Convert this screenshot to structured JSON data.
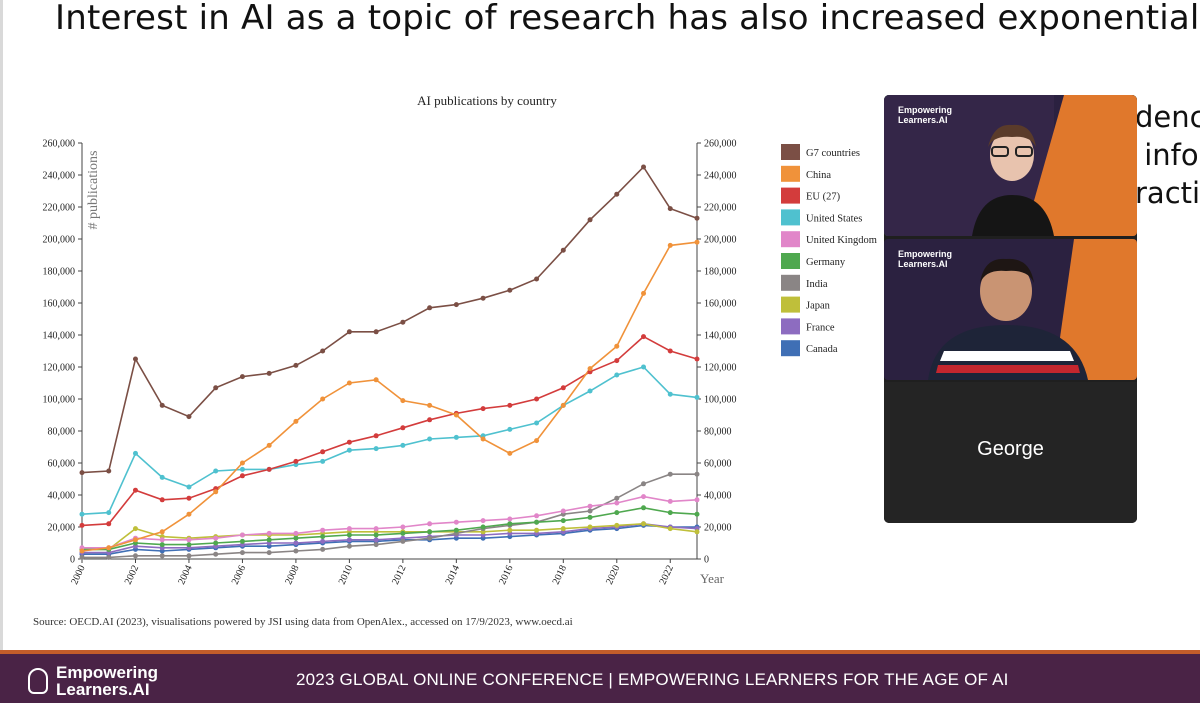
{
  "slide": {
    "title": "Interest in AI as a topic of research has also increased exponentially",
    "cut_off_text": "denc\n info\nractio",
    "source_note": "Source: OECD.AI (2023), visualisations powered by JSI using data from OpenAlex., accessed on 17/9/2023, www.oecd.ai"
  },
  "video_panel": {
    "tile_logo_line1": "Empowering",
    "tile_logo_line2": "Learners.AI",
    "participant_name": "George"
  },
  "footer": {
    "logo_line1": "Empowering",
    "logo_line2": "Learners.AI",
    "conference_text": "2023 GLOBAL ONLINE CONFERENCE  |  EMPOWERING LEARNERS FOR THE AGE OF AI",
    "accent_color": "#c25d2a",
    "bar_color": "#4a2346"
  },
  "chart_data": {
    "type": "line",
    "title": "AI publications by country",
    "ylabel": "# publications",
    "xlabel": "Year",
    "ylim": [
      0,
      260000
    ],
    "yticks": [
      0,
      20000,
      40000,
      60000,
      80000,
      100000,
      120000,
      140000,
      160000,
      180000,
      200000,
      220000,
      240000,
      260000
    ],
    "ytick_labels": [
      "0",
      "20,000",
      "40,000",
      "60,000",
      "80,000",
      "100,000",
      "120,000",
      "140,000",
      "160,000",
      "180,000",
      "200,000",
      "220,000",
      "240,000",
      "260,000"
    ],
    "xticks": [
      2000,
      2002,
      2004,
      2006,
      2008,
      2010,
      2012,
      2014,
      2016,
      2018,
      2020,
      2022
    ],
    "xtick_labels": [
      "2000",
      "2002",
      "2004",
      "2006",
      "2008",
      "2010",
      "2012",
      "2014",
      "2016",
      "2018",
      "2020",
      "2022"
    ],
    "legend_position": "right",
    "x": [
      2000,
      2001,
      2002,
      2003,
      2004,
      2005,
      2006,
      2007,
      2008,
      2009,
      2010,
      2011,
      2012,
      2013,
      2014,
      2015,
      2016,
      2017,
      2018,
      2019,
      2020,
      2021,
      2022,
      2023
    ],
    "series": [
      {
        "name": "G7 countries",
        "color": "#7b4f45",
        "values": [
          54000,
          55000,
          125000,
          96000,
          89000,
          107000,
          114000,
          116000,
          121000,
          130000,
          142000,
          142000,
          148000,
          157000,
          159000,
          163000,
          168000,
          175000,
          193000,
          212000,
          228000,
          245000,
          219000,
          213000
        ]
      },
      {
        "name": "China",
        "color": "#f0923a",
        "values": [
          5000,
          7000,
          12000,
          17000,
          28000,
          42000,
          60000,
          71000,
          86000,
          100000,
          110000,
          112000,
          99000,
          96000,
          90000,
          75000,
          66000,
          74000,
          96000,
          119000,
          133000,
          166000,
          196000,
          198000
        ]
      },
      {
        "name": "EU (27)",
        "color": "#d33c3c",
        "values": [
          21000,
          22000,
          43000,
          37000,
          38000,
          44000,
          52000,
          56000,
          61000,
          67000,
          73000,
          77000,
          82000,
          87000,
          91000,
          94000,
          96000,
          100000,
          107000,
          117000,
          124000,
          139000,
          130000,
          125000
        ]
      },
      {
        "name": "United States",
        "color": "#4fc1cf",
        "values": [
          28000,
          29000,
          66000,
          51000,
          45000,
          55000,
          56000,
          56000,
          59000,
          61000,
          68000,
          69000,
          71000,
          75000,
          76000,
          77000,
          81000,
          85000,
          96000,
          105000,
          115000,
          120000,
          103000,
          101000
        ]
      },
      {
        "name": "United Kingdom",
        "color": "#e186c9",
        "values": [
          7000,
          7000,
          13000,
          12000,
          12000,
          13000,
          15000,
          16000,
          16000,
          18000,
          19000,
          19000,
          20000,
          22000,
          23000,
          24000,
          25000,
          27000,
          30000,
          33000,
          35000,
          39000,
          36000,
          37000
        ]
      },
      {
        "name": "Germany",
        "color": "#4fa84f",
        "values": [
          6000,
          6000,
          10000,
          9000,
          9000,
          10000,
          11000,
          12000,
          13000,
          14000,
          15000,
          15000,
          16000,
          17000,
          18000,
          20000,
          22000,
          23000,
          24000,
          26000,
          29000,
          32000,
          29000,
          28000
        ]
      },
      {
        "name": "India",
        "color": "#8a8585",
        "values": [
          1000,
          1000,
          2000,
          2000,
          2000,
          3000,
          4000,
          4000,
          5000,
          6000,
          8000,
          9000,
          11000,
          13000,
          16000,
          19000,
          21000,
          23000,
          28000,
          30000,
          38000,
          47000,
          53000,
          53000
        ]
      },
      {
        "name": "Japan",
        "color": "#bfbf3a",
        "values": [
          6000,
          6000,
          19000,
          14000,
          13000,
          14000,
          15000,
          15000,
          15000,
          16000,
          17000,
          17000,
          17000,
          17000,
          17000,
          17000,
          18000,
          18000,
          19000,
          20000,
          21000,
          22000,
          19000,
          17000
        ]
      },
      {
        "name": "France",
        "color": "#8d6cc0",
        "values": [
          4000,
          4000,
          8000,
          7000,
          7000,
          8000,
          9000,
          10000,
          10000,
          11000,
          12000,
          12000,
          13000,
          14000,
          15000,
          15000,
          16000,
          16000,
          17000,
          19000,
          20000,
          22000,
          20000,
          19000
        ]
      },
      {
        "name": "Canada",
        "color": "#3f6fb5",
        "values": [
          3000,
          3000,
          6000,
          5000,
          6000,
          7000,
          8000,
          8000,
          9000,
          10000,
          11000,
          11000,
          12000,
          12000,
          13000,
          13000,
          14000,
          15000,
          16000,
          18000,
          19000,
          21000,
          20000,
          20000
        ]
      }
    ]
  }
}
